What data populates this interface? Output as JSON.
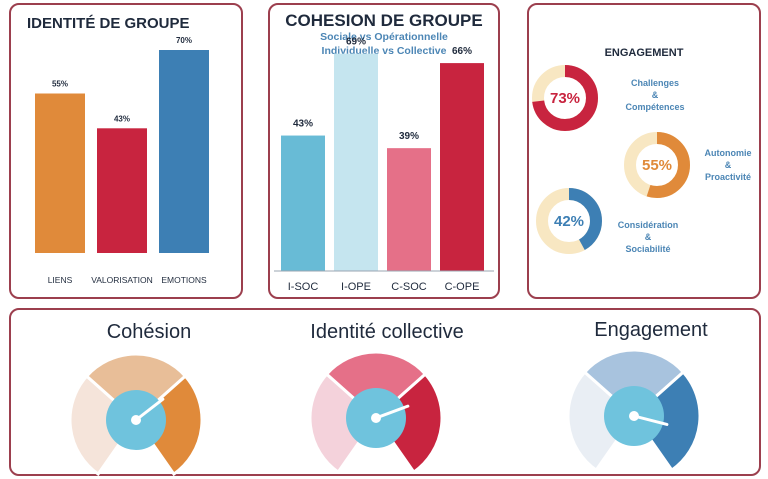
{
  "panels": {
    "identite": {
      "title": "IDENTITÉ DE GROUPE"
    },
    "cohesion": {
      "title": "COHESION DE GROUPE",
      "subtitle1": "Sociale vs Opérationnelle",
      "subtitle2": "Individuelle vs Collective"
    },
    "engagement": {
      "title": "ENGAGEMENT",
      "rings": [
        {
          "lines": [
            "Challenges",
            "&",
            "Compétences"
          ]
        },
        {
          "lines": [
            "Autonomie",
            "&",
            "Proactivité"
          ]
        },
        {
          "lines": [
            "Considération",
            "&",
            "Sociabilité"
          ]
        }
      ]
    },
    "gauges": {
      "titles": [
        "Cohésion",
        "Identité collective",
        "Engagement"
      ]
    }
  },
  "chart_data": [
    {
      "type": "bar",
      "title": "IDENTITÉ DE GROUPE",
      "categories": [
        "LIENS",
        "VALORISATION",
        "EMOTIONS"
      ],
      "values": [
        55,
        43,
        70
      ],
      "value_labels": [
        "55%",
        "43%",
        "70%"
      ],
      "colors": [
        "#e08a3a",
        "#c8243f",
        "#3d7fb4"
      ],
      "ylim": [
        0,
        80
      ]
    },
    {
      "type": "bar",
      "title": "COHESION DE GROUPE",
      "subtitle": "Sociale vs Opérationnelle / Individuelle vs Collective",
      "categories": [
        "I-SOC",
        "I-OPE",
        "C-SOC",
        "C-OPE"
      ],
      "values": [
        43,
        69,
        39,
        66
      ],
      "value_labels": [
        "43%",
        "69%",
        "39%",
        "66%"
      ],
      "colors": [
        "#68bbd6",
        "#c5e5ef",
        "#e57088",
        "#c8243f"
      ],
      "ylim": [
        0,
        80
      ]
    },
    {
      "type": "pie",
      "title": "ENGAGEMENT",
      "categories": [
        "Challenges & Compétences",
        "Autonomie & Proactivité",
        "Considération & Sociabilité"
      ],
      "values": [
        73,
        55,
        42
      ],
      "value_labels": [
        "73%",
        "55%",
        "42%"
      ],
      "colors": [
        "#c8243f",
        "#e08a3a",
        "#3d7fb4"
      ],
      "track_color": "#f8e7c2"
    },
    {
      "type": "gauge",
      "categories": [
        "Cohésion",
        "Identité collective",
        "Engagement"
      ],
      "needle_fraction": [
        0.68,
        0.74,
        0.86
      ],
      "zone_colors": [
        [
          "#f5e4da",
          "#e8be98",
          "#e08a3a"
        ],
        [
          "#f4d2db",
          "#e57088",
          "#c8243f"
        ],
        [
          "#e9eef4",
          "#a8c3de",
          "#3d7fb4"
        ]
      ],
      "hub_color": "#6fc3dd"
    }
  ]
}
